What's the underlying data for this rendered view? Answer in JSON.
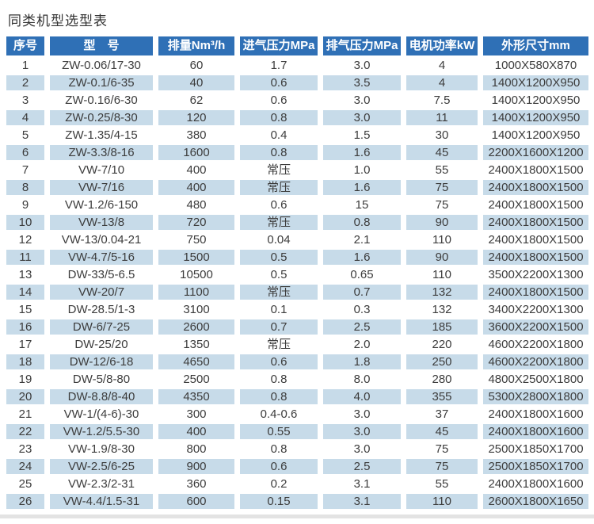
{
  "page": {
    "title": "同类机型选型表"
  },
  "table": {
    "headers": [
      "序号",
      "型　号",
      "排量Nm³/h",
      "进气压力MPa",
      "排气压力MPa",
      "电机功率kW",
      "外形尺寸mm"
    ],
    "rows": [
      [
        "1",
        "ZW-0.06/17-30",
        "60",
        "1.7",
        "3.0",
        "4",
        "1000X580X870"
      ],
      [
        "2",
        "ZW-0.1/6-35",
        "40",
        "0.6",
        "3.5",
        "4",
        "1400X1200X950"
      ],
      [
        "3",
        "ZW-0.16/6-30",
        "62",
        "0.6",
        "3.0",
        "7.5",
        "1400X1200X950"
      ],
      [
        "4",
        "ZW-0.25/8-30",
        "120",
        "0.8",
        "3.0",
        "11",
        "1400X1200X950"
      ],
      [
        "5",
        "ZW-1.35/4-15",
        "380",
        "0.4",
        "1.5",
        "30",
        "1400X1200X950"
      ],
      [
        "6",
        "ZW-3.3/8-16",
        "1600",
        "0.8",
        "1.6",
        "45",
        "2200X1600X1200"
      ],
      [
        "7",
        "VW-7/10",
        "400",
        "常压",
        "1.0",
        "55",
        "2400X1800X1500"
      ],
      [
        "8",
        "VW-7/16",
        "400",
        "常压",
        "1.6",
        "75",
        "2400X1800X1500"
      ],
      [
        "9",
        "VW-1.2/6-150",
        "480",
        "0.6",
        "15",
        "75",
        "2400X1800X1500"
      ],
      [
        "10",
        "VW-13/8",
        "720",
        "常压",
        "0.8",
        "90",
        "2400X1800X1500"
      ],
      [
        "12",
        "VW-13/0.04-21",
        "750",
        "0.04",
        "2.1",
        "110",
        "2400X1800X1500"
      ],
      [
        "11",
        "VW-4.7/5-16",
        "1500",
        "0.5",
        "1.6",
        "90",
        "2400X1800X1500"
      ],
      [
        "13",
        "DW-33/5-6.5",
        "10500",
        "0.5",
        "0.65",
        "110",
        "3500X2200X1300"
      ],
      [
        "14",
        "VW-20/7",
        "1100",
        "常压",
        "0.7",
        "132",
        "2400X1800X1500"
      ],
      [
        "15",
        "DW-28.5/1-3",
        "3100",
        "0.1",
        "0.3",
        "132",
        "3400X2200X1300"
      ],
      [
        "16",
        "DW-6/7-25",
        "2600",
        "0.7",
        "2.5",
        "185",
        "3600X2200X1500"
      ],
      [
        "17",
        "DW-25/20",
        "1350",
        "常压",
        "2.0",
        "220",
        "4600X2200X1800"
      ],
      [
        "18",
        "DW-12/6-18",
        "4650",
        "0.6",
        "1.8",
        "250",
        "4600X2200X1800"
      ],
      [
        "19",
        "DW-5/8-80",
        "2500",
        "0.8",
        "8.0",
        "280",
        "4800X2500X1800"
      ],
      [
        "20",
        "DW-8.8/8-40",
        "4350",
        "0.8",
        "4.0",
        "355",
        "5300X2800X1800"
      ],
      [
        "21",
        "VW-1/(4-6)-30",
        "300",
        "0.4-0.6",
        "3.0",
        "37",
        "2400X1800X1600"
      ],
      [
        "22",
        "VW-1.2/5.5-30",
        "400",
        "0.55",
        "3.0",
        "45",
        "2400X1800X1600"
      ],
      [
        "23",
        "VW-1.9/8-30",
        "800",
        "0.8",
        "3.0",
        "75",
        "2500X1850X1700"
      ],
      [
        "24",
        "VW-2.5/6-25",
        "900",
        "0.6",
        "2.5",
        "75",
        "2500X1850X1700"
      ],
      [
        "25",
        "VW-2.3/2-31",
        "360",
        "0.2",
        "3.1",
        "55",
        "2400X1800X1600"
      ],
      [
        "26",
        "VW-4.4/1.5-31",
        "600",
        "0.15",
        "3.1",
        "110",
        "2600X1800X1650"
      ]
    ],
    "colors": {
      "header_bg": "#2f70b6",
      "header_text": "#ffffff",
      "stripe_bg": "#c7dbe9",
      "body_text": "#3c3c3c",
      "divider": "#e3e3e3"
    }
  }
}
